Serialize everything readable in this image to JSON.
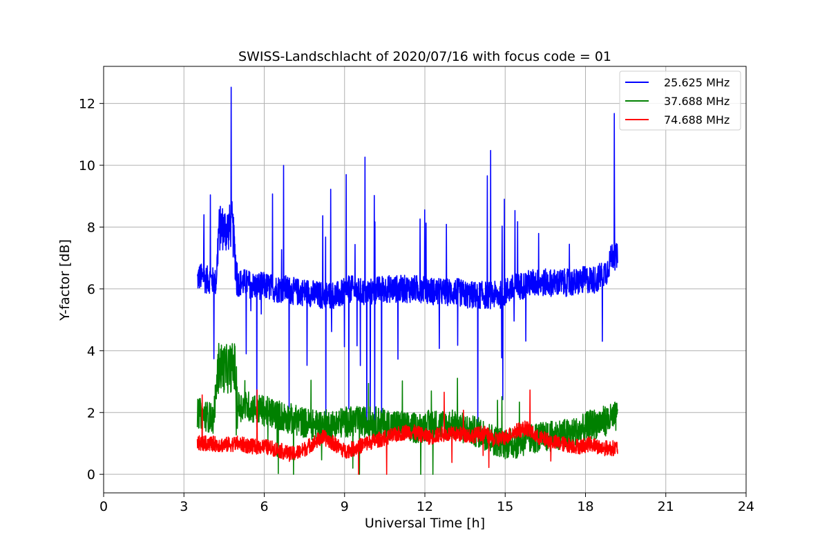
{
  "chart_data": {
    "type": "line",
    "title": "SWISS-Landschlacht of 2020/07/16 with focus code = 01",
    "xlabel": "Universal Time [h]",
    "ylabel": "Y-factor [dB]",
    "xlim": [
      0,
      24
    ],
    "ylim": [
      -0.6,
      13.2
    ],
    "xticks": [
      0,
      3,
      6,
      9,
      12,
      15,
      18,
      21,
      24
    ],
    "yticks": [
      0,
      2,
      4,
      6,
      8,
      10,
      12
    ],
    "grid": true,
    "legend_position": "top-right",
    "series": [
      {
        "name": "25.625 MHz",
        "color": "#0000ff",
        "x": [
          3.5,
          3.6,
          3.8,
          4.0,
          4.2,
          4.3,
          4.4,
          4.6,
          4.8,
          5.0,
          5.3,
          5.6,
          6.0,
          6.4,
          6.8,
          7.2,
          7.6,
          8.0,
          8.4,
          8.8,
          9.2,
          9.6,
          10.0,
          10.4,
          10.8,
          11.2,
          11.6,
          12.0,
          12.4,
          12.8,
          13.2,
          13.6,
          14.0,
          14.4,
          14.8,
          15.2,
          15.6,
          16.0,
          16.4,
          16.8,
          17.2,
          17.6,
          18.0,
          18.4,
          18.8,
          19.0,
          19.2
        ],
        "values": [
          6.3,
          6.4,
          6.3,
          6.3,
          6.2,
          7.9,
          8.0,
          7.9,
          8.1,
          6.2,
          6.2,
          6.1,
          6.1,
          6.0,
          6.0,
          5.9,
          5.9,
          5.8,
          5.8,
          5.8,
          6.0,
          5.9,
          5.9,
          6.0,
          6.0,
          6.0,
          6.0,
          6.0,
          5.9,
          5.9,
          5.9,
          5.8,
          5.8,
          5.8,
          5.8,
          6.0,
          6.1,
          6.2,
          6.2,
          6.2,
          6.2,
          6.2,
          6.3,
          6.3,
          6.6,
          7.1,
          7.0
        ]
      },
      {
        "name": "37.688 MHz",
        "color": "#008000",
        "x": [
          3.5,
          3.8,
          4.1,
          4.3,
          4.6,
          4.9,
          5.0,
          5.4,
          5.8,
          6.2,
          6.6,
          7.0,
          7.4,
          7.8,
          8.2,
          8.6,
          9.0,
          9.4,
          9.8,
          10.2,
          10.6,
          11.0,
          11.4,
          11.8,
          12.2,
          12.6,
          13.0,
          13.4,
          13.8,
          14.2,
          14.6,
          15.0,
          15.4,
          15.8,
          16.2,
          16.6,
          17.0,
          17.4,
          17.8,
          18.2,
          18.6,
          19.0,
          19.2
        ],
        "values": [
          2.0,
          1.9,
          1.8,
          3.5,
          3.4,
          3.5,
          2.2,
          2.2,
          2.1,
          2.0,
          1.9,
          1.8,
          1.7,
          1.6,
          1.6,
          1.6,
          1.7,
          1.7,
          1.7,
          1.7,
          1.6,
          1.6,
          1.5,
          1.5,
          1.6,
          1.6,
          1.6,
          1.5,
          1.4,
          1.3,
          1.1,
          1.0,
          1.0,
          1.1,
          1.2,
          1.2,
          1.3,
          1.3,
          1.4,
          1.6,
          1.7,
          1.8,
          1.9
        ]
      },
      {
        "name": "74.688 MHz",
        "color": "#ff0000",
        "x": [
          3.5,
          4.0,
          4.5,
          5.0,
          5.5,
          6.0,
          6.5,
          7.0,
          7.4,
          7.8,
          8.2,
          8.6,
          9.0,
          9.4,
          9.8,
          10.2,
          10.6,
          11.0,
          11.4,
          11.8,
          12.2,
          12.6,
          13.0,
          13.4,
          13.8,
          14.2,
          14.6,
          15.0,
          15.4,
          15.8,
          16.2,
          16.6,
          17.0,
          17.4,
          17.8,
          18.2,
          18.6,
          19.0,
          19.2
        ],
        "values": [
          1.0,
          1.0,
          0.95,
          1.0,
          0.9,
          0.9,
          0.8,
          0.65,
          0.75,
          1.0,
          1.2,
          1.0,
          0.75,
          0.85,
          1.0,
          1.1,
          1.2,
          1.3,
          1.4,
          1.3,
          1.2,
          1.3,
          1.3,
          1.3,
          1.25,
          1.35,
          1.1,
          1.2,
          1.4,
          1.5,
          1.2,
          1.1,
          1.0,
          0.95,
          0.9,
          1.0,
          0.85,
          0.85,
          0.85
        ]
      }
    ]
  }
}
